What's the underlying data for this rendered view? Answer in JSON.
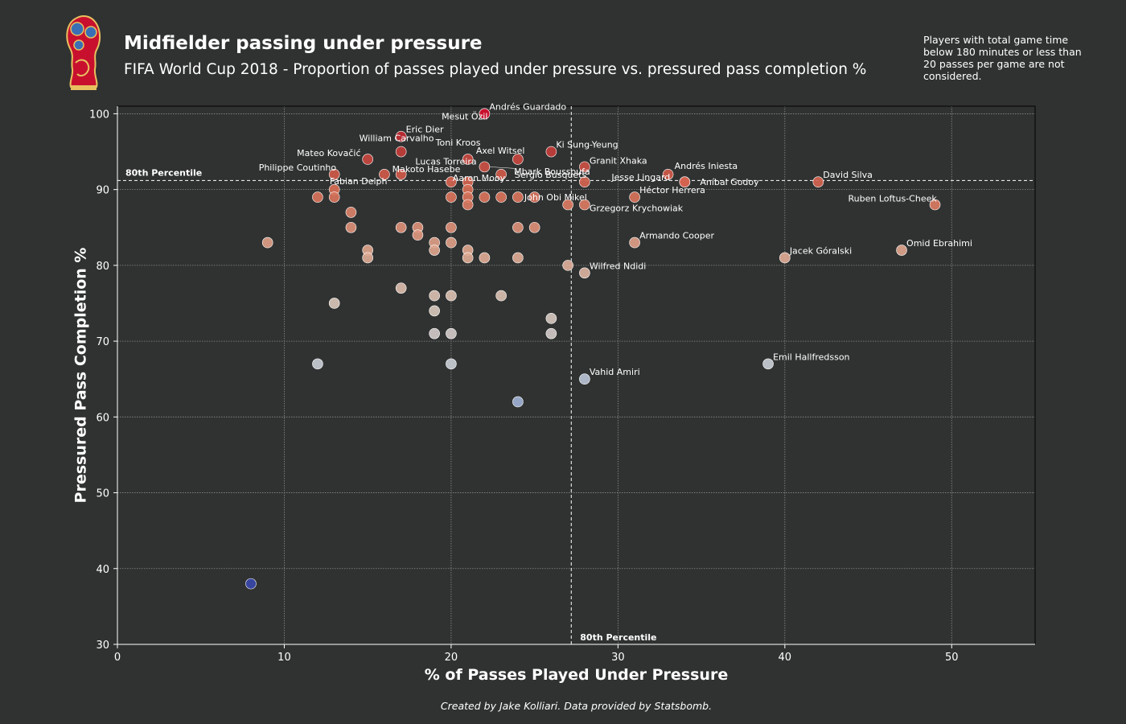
{
  "header": {
    "title": "Midfielder passing under pressure",
    "subtitle": "FIFA World Cup 2018 - Proportion of passes played under pressure vs. pressured pass completion %",
    "note": "Players with total game time below 180 minutes or less than 20 passes per game are not considered.",
    "credit": "Created by Jake Kolliari. Data provided by Statsbomb."
  },
  "colors": {
    "background": "#303231",
    "high": "#c8102e",
    "mid": "#d8b4a2",
    "low": "#3a46a8"
  },
  "chart_data": {
    "type": "scatter",
    "xlabel": "% of Passes Played Under Pressure",
    "ylabel": "Pressured Pass Completion %",
    "xlim": [
      0,
      55
    ],
    "ylim": [
      30,
      101
    ],
    "xticks": [
      0,
      10,
      20,
      30,
      40,
      50
    ],
    "yticks": [
      30,
      40,
      50,
      60,
      70,
      80,
      90,
      100
    ],
    "grid": true,
    "percentile_x": 27.2,
    "percentile_y": 91.2,
    "percentile_label_x": "80th Percentile",
    "percentile_label_y": "80th Percentile",
    "points": [
      {
        "x": 22,
        "y": 100,
        "label": "Andrés Guardado"
      },
      {
        "x": 22,
        "y": 100,
        "label": "Mesut Özil"
      },
      {
        "x": 17,
        "y": 97,
        "label": "Eric Dier"
      },
      {
        "x": 17,
        "y": 95,
        "label": "William Carvalho"
      },
      {
        "x": 21,
        "y": 94,
        "label": "Toni Kroos"
      },
      {
        "x": 26,
        "y": 95,
        "label": "Ki Sung-Yeung"
      },
      {
        "x": 15,
        "y": 94,
        "label": "Mateo Kovačić"
      },
      {
        "x": 24,
        "y": 94,
        "label": "Axel Witsel"
      },
      {
        "x": 22,
        "y": 93,
        "label": "Lucas Torreira"
      },
      {
        "x": 28,
        "y": 93,
        "label": "Granit Xhaka"
      },
      {
        "x": 23,
        "y": 92,
        "label": "Mbark Boussoufa"
      },
      {
        "x": 13,
        "y": 92,
        "label": "Philippe Coutinho"
      },
      {
        "x": 17,
        "y": 92,
        "label": "Makoto Hasebe"
      },
      {
        "x": 33,
        "y": 92,
        "label": "Andrés Iniesta"
      },
      {
        "x": 16,
        "y": 92,
        "label": "Fabian Delph"
      },
      {
        "x": 20,
        "y": 91,
        "label": "Aaron Mooy"
      },
      {
        "x": 28,
        "y": 91,
        "label": "Sergio Busquets"
      },
      {
        "x": 34,
        "y": 91,
        "label": "Jesse Lingard"
      },
      {
        "x": 34,
        "y": 91,
        "label": "Aníbal Godoy"
      },
      {
        "x": 42,
        "y": 91,
        "label": "David Silva"
      },
      {
        "x": 31,
        "y": 89,
        "label": "Héctor Herrera"
      },
      {
        "x": 24,
        "y": 89,
        "label": "John Obi Mikel"
      },
      {
        "x": 28,
        "y": 88,
        "label": "Grzegorz Krychowiak"
      },
      {
        "x": 49,
        "y": 88,
        "label": "Ruben Loftus-Cheek"
      },
      {
        "x": 31,
        "y": 83,
        "label": "Armando Cooper"
      },
      {
        "x": 47,
        "y": 82,
        "label": "Omid Ebrahimi"
      },
      {
        "x": 40,
        "y": 81,
        "label": "Jacek Góralski"
      },
      {
        "x": 28,
        "y": 79,
        "label": "Wilfred Ndidi"
      },
      {
        "x": 39,
        "y": 67,
        "label": "Emil Hallfredsson"
      },
      {
        "x": 28,
        "y": 65,
        "label": "Vahid Amiri"
      },
      {
        "x": 21,
        "y": 91
      },
      {
        "x": 21,
        "y": 90
      },
      {
        "x": 21,
        "y": 89
      },
      {
        "x": 21,
        "y": 88
      },
      {
        "x": 13,
        "y": 90
      },
      {
        "x": 12,
        "y": 89
      },
      {
        "x": 13,
        "y": 89
      },
      {
        "x": 20,
        "y": 89
      },
      {
        "x": 22,
        "y": 89
      },
      {
        "x": 23,
        "y": 89
      },
      {
        "x": 25,
        "y": 89
      },
      {
        "x": 27,
        "y": 88
      },
      {
        "x": 14,
        "y": 87
      },
      {
        "x": 14,
        "y": 85
      },
      {
        "x": 17,
        "y": 85
      },
      {
        "x": 18,
        "y": 85
      },
      {
        "x": 20,
        "y": 85
      },
      {
        "x": 24,
        "y": 85
      },
      {
        "x": 25,
        "y": 85
      },
      {
        "x": 18,
        "y": 84
      },
      {
        "x": 9,
        "y": 83
      },
      {
        "x": 19,
        "y": 83
      },
      {
        "x": 20,
        "y": 83
      },
      {
        "x": 15,
        "y": 82
      },
      {
        "x": 19,
        "y": 82
      },
      {
        "x": 21,
        "y": 82
      },
      {
        "x": 15,
        "y": 81
      },
      {
        "x": 21,
        "y": 81
      },
      {
        "x": 22,
        "y": 81
      },
      {
        "x": 24,
        "y": 81
      },
      {
        "x": 27,
        "y": 80
      },
      {
        "x": 17,
        "y": 77
      },
      {
        "x": 19,
        "y": 76
      },
      {
        "x": 20,
        "y": 76
      },
      {
        "x": 23,
        "y": 76
      },
      {
        "x": 13,
        "y": 75
      },
      {
        "x": 19,
        "y": 74
      },
      {
        "x": 26,
        "y": 73
      },
      {
        "x": 19,
        "y": 71
      },
      {
        "x": 20,
        "y": 71
      },
      {
        "x": 26,
        "y": 71
      },
      {
        "x": 12,
        "y": 67
      },
      {
        "x": 20,
        "y": 67
      },
      {
        "x": 24,
        "y": 62
      },
      {
        "x": 8,
        "y": 38
      }
    ]
  }
}
